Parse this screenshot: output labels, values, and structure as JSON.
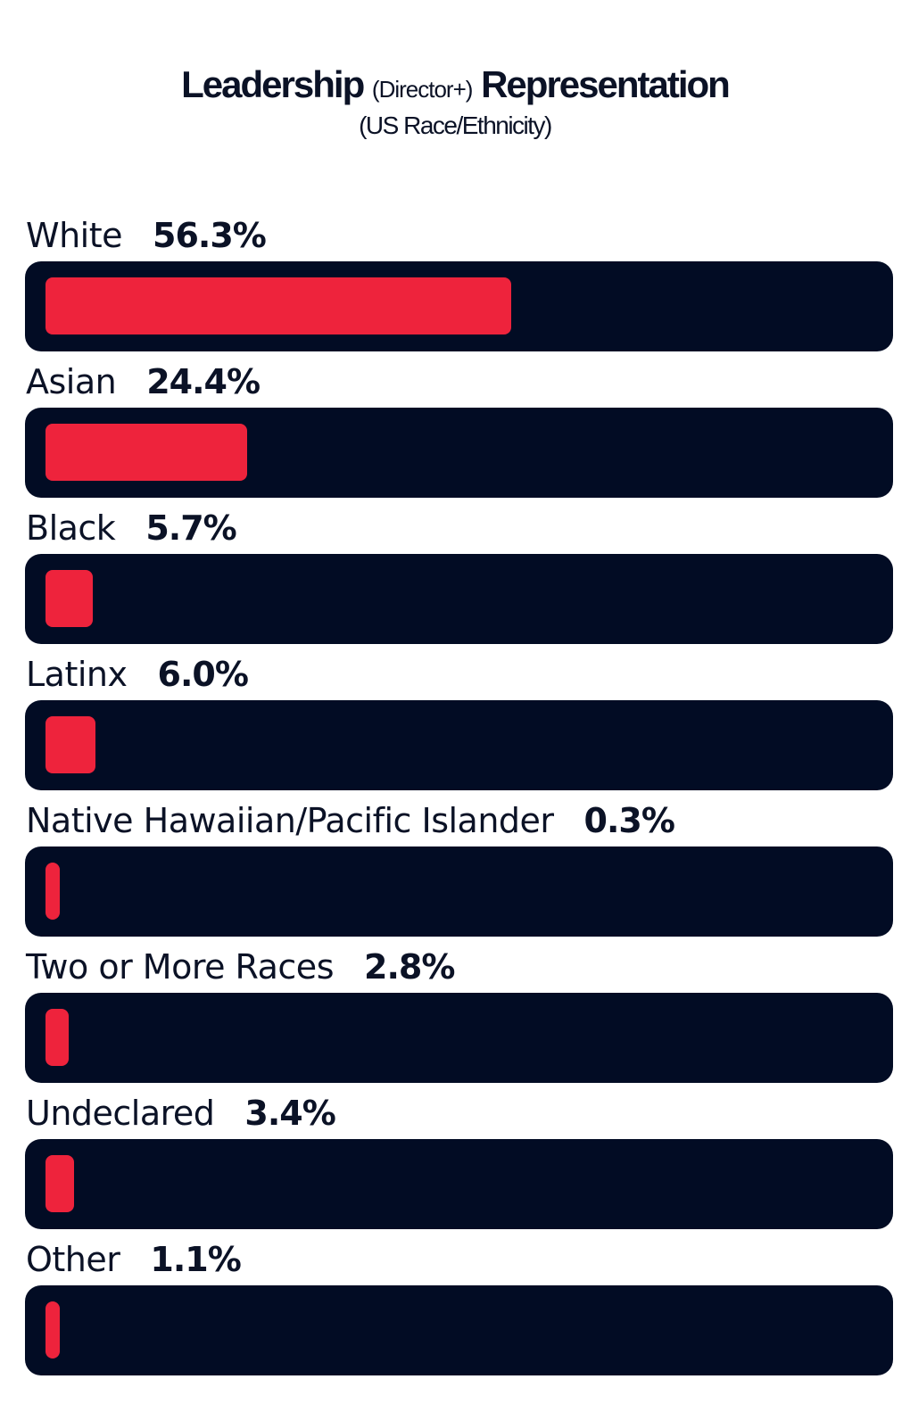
{
  "chart_data": {
    "type": "bar",
    "orientation": "horizontal",
    "title": {
      "main_start": "Leadership",
      "qualifier": "(Director+)",
      "main_end": "Representation"
    },
    "subtitle": "(US Race/Ethnicity)",
    "xlim": [
      0,
      100
    ],
    "grid": false,
    "legend": "none",
    "bar_color": "#ee233c",
    "track_color": "#020c24",
    "categories": [
      "White",
      "Asian",
      "Black",
      "Latinx",
      "Native Hawaiian/Pacific Islander",
      "Two or More Races",
      "Undeclared",
      "Other"
    ],
    "values": [
      56.3,
      24.4,
      5.7,
      6.0,
      0.3,
      2.8,
      3.4,
      1.1
    ],
    "value_labels": [
      "56.3%",
      "24.4%",
      "5.7%",
      "6.0%",
      "0.3%",
      "2.8%",
      "3.4%",
      "1.1%"
    ]
  }
}
